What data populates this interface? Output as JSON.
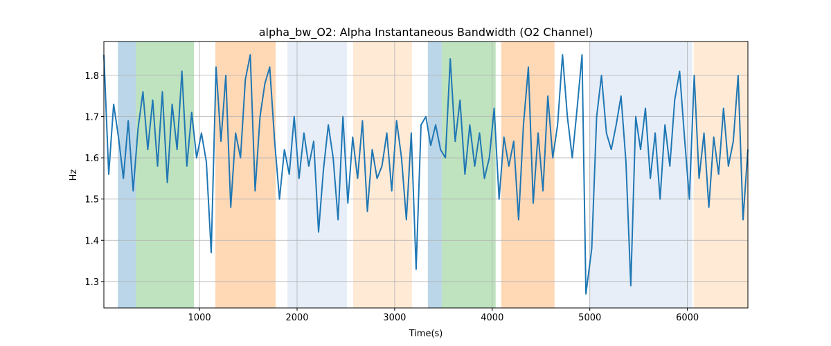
{
  "chart_data": {
    "type": "line",
    "title": "alpha_bw_O2: Alpha Instantaneous Bandwidth (O2 Channel)",
    "xlabel": "Time(s)",
    "ylabel": "Hz",
    "xlim": [
      20,
      6620
    ],
    "ylim": [
      1.236,
      1.882
    ],
    "xticks": [
      1000,
      2000,
      3000,
      4000,
      5000,
      6000
    ],
    "xtick_labels": [
      "1000",
      "2000",
      "3000",
      "4000",
      "5000",
      "6000"
    ],
    "yticks": [
      1.3,
      1.4,
      1.5,
      1.6,
      1.7,
      1.8
    ],
    "ytick_labels": [
      "1.3",
      "1.4",
      "1.5",
      "1.6",
      "1.7",
      "1.8"
    ],
    "grid": true,
    "line_color": "#1f77b4",
    "spans": [
      {
        "start": 163,
        "end": 348,
        "color": "#1f77b4",
        "alpha": 0.3
      },
      {
        "start": 348,
        "end": 943,
        "color": "#2ca02c",
        "alpha": 0.3
      },
      {
        "start": 1163,
        "end": 1780,
        "color": "#ff7f0e",
        "alpha": 0.3
      },
      {
        "start": 1901,
        "end": 2511,
        "color": "#aec7e8",
        "alpha": 0.3
      },
      {
        "start": 2574,
        "end": 3177,
        "color": "#ffbb78",
        "alpha": 0.3
      },
      {
        "start": 3340,
        "end": 3482,
        "color": "#1f77b4",
        "alpha": 0.3
      },
      {
        "start": 3482,
        "end": 4035,
        "color": "#2ca02c",
        "alpha": 0.3
      },
      {
        "start": 4092,
        "end": 4638,
        "color": "#ff7f0e",
        "alpha": 0.3
      },
      {
        "start": 4993,
        "end": 6050,
        "color": "#aec7e8",
        "alpha": 0.3
      },
      {
        "start": 6064,
        "end": 6620,
        "color": "#ffbb78",
        "alpha": 0.3
      }
    ],
    "series": [
      {
        "name": "alpha_bw_O2",
        "x": [
          20,
          70,
          120,
          170,
          220,
          270,
          320,
          370,
          420,
          470,
          520,
          570,
          620,
          670,
          720,
          770,
          820,
          870,
          920,
          970,
          1020,
          1070,
          1120,
          1170,
          1220,
          1270,
          1320,
          1370,
          1420,
          1470,
          1520,
          1570,
          1620,
          1670,
          1720,
          1770,
          1820,
          1870,
          1920,
          1970,
          2020,
          2070,
          2120,
          2170,
          2220,
          2270,
          2320,
          2370,
          2420,
          2470,
          2520,
          2570,
          2620,
          2670,
          2720,
          2770,
          2820,
          2870,
          2920,
          2970,
          3020,
          3070,
          3120,
          3170,
          3220,
          3270,
          3320,
          3370,
          3420,
          3470,
          3520,
          3570,
          3620,
          3670,
          3720,
          3770,
          3820,
          3870,
          3920,
          3970,
          4020,
          4070,
          4120,
          4170,
          4220,
          4270,
          4320,
          4370,
          4420,
          4470,
          4520,
          4570,
          4620,
          4670,
          4720,
          4770,
          4820,
          4870,
          4920,
          4960,
          5020,
          5070,
          5120,
          5170,
          5220,
          5270,
          5320,
          5370,
          5420,
          5470,
          5520,
          5570,
          5620,
          5670,
          5720,
          5770,
          5820,
          5870,
          5920,
          5970,
          6020,
          6070,
          6120,
          6170,
          6220,
          6270,
          6320,
          6370,
          6420,
          6470,
          6520,
          6570,
          6620
        ],
        "y": [
          1.85,
          1.56,
          1.73,
          1.65,
          1.55,
          1.69,
          1.52,
          1.67,
          1.76,
          1.62,
          1.74,
          1.58,
          1.76,
          1.54,
          1.73,
          1.62,
          1.81,
          1.58,
          1.71,
          1.6,
          1.66,
          1.59,
          1.37,
          1.82,
          1.64,
          1.8,
          1.48,
          1.66,
          1.6,
          1.79,
          1.85,
          1.52,
          1.7,
          1.78,
          1.82,
          1.64,
          1.5,
          1.62,
          1.56,
          1.7,
          1.55,
          1.66,
          1.58,
          1.64,
          1.42,
          1.57,
          1.68,
          1.6,
          1.45,
          1.7,
          1.49,
          1.65,
          1.55,
          1.69,
          1.47,
          1.62,
          1.55,
          1.58,
          1.66,
          1.52,
          1.69,
          1.6,
          1.45,
          1.66,
          1.33,
          1.68,
          1.7,
          1.63,
          1.68,
          1.62,
          1.6,
          1.84,
          1.64,
          1.74,
          1.56,
          1.68,
          1.58,
          1.66,
          1.55,
          1.6,
          1.72,
          1.5,
          1.65,
          1.58,
          1.64,
          1.45,
          1.68,
          1.82,
          1.49,
          1.66,
          1.52,
          1.75,
          1.6,
          1.68,
          1.85,
          1.7,
          1.6,
          1.72,
          1.85,
          1.27,
          1.38,
          1.7,
          1.8,
          1.66,
          1.62,
          1.68,
          1.75,
          1.59,
          1.29,
          1.7,
          1.62,
          1.72,
          1.55,
          1.66,
          1.5,
          1.68,
          1.58,
          1.74,
          1.81,
          1.65,
          1.5,
          1.8,
          1.55,
          1.66,
          1.48,
          1.65,
          1.56,
          1.72,
          1.58,
          1.64,
          1.8,
          1.45,
          1.62
        ]
      }
    ]
  }
}
